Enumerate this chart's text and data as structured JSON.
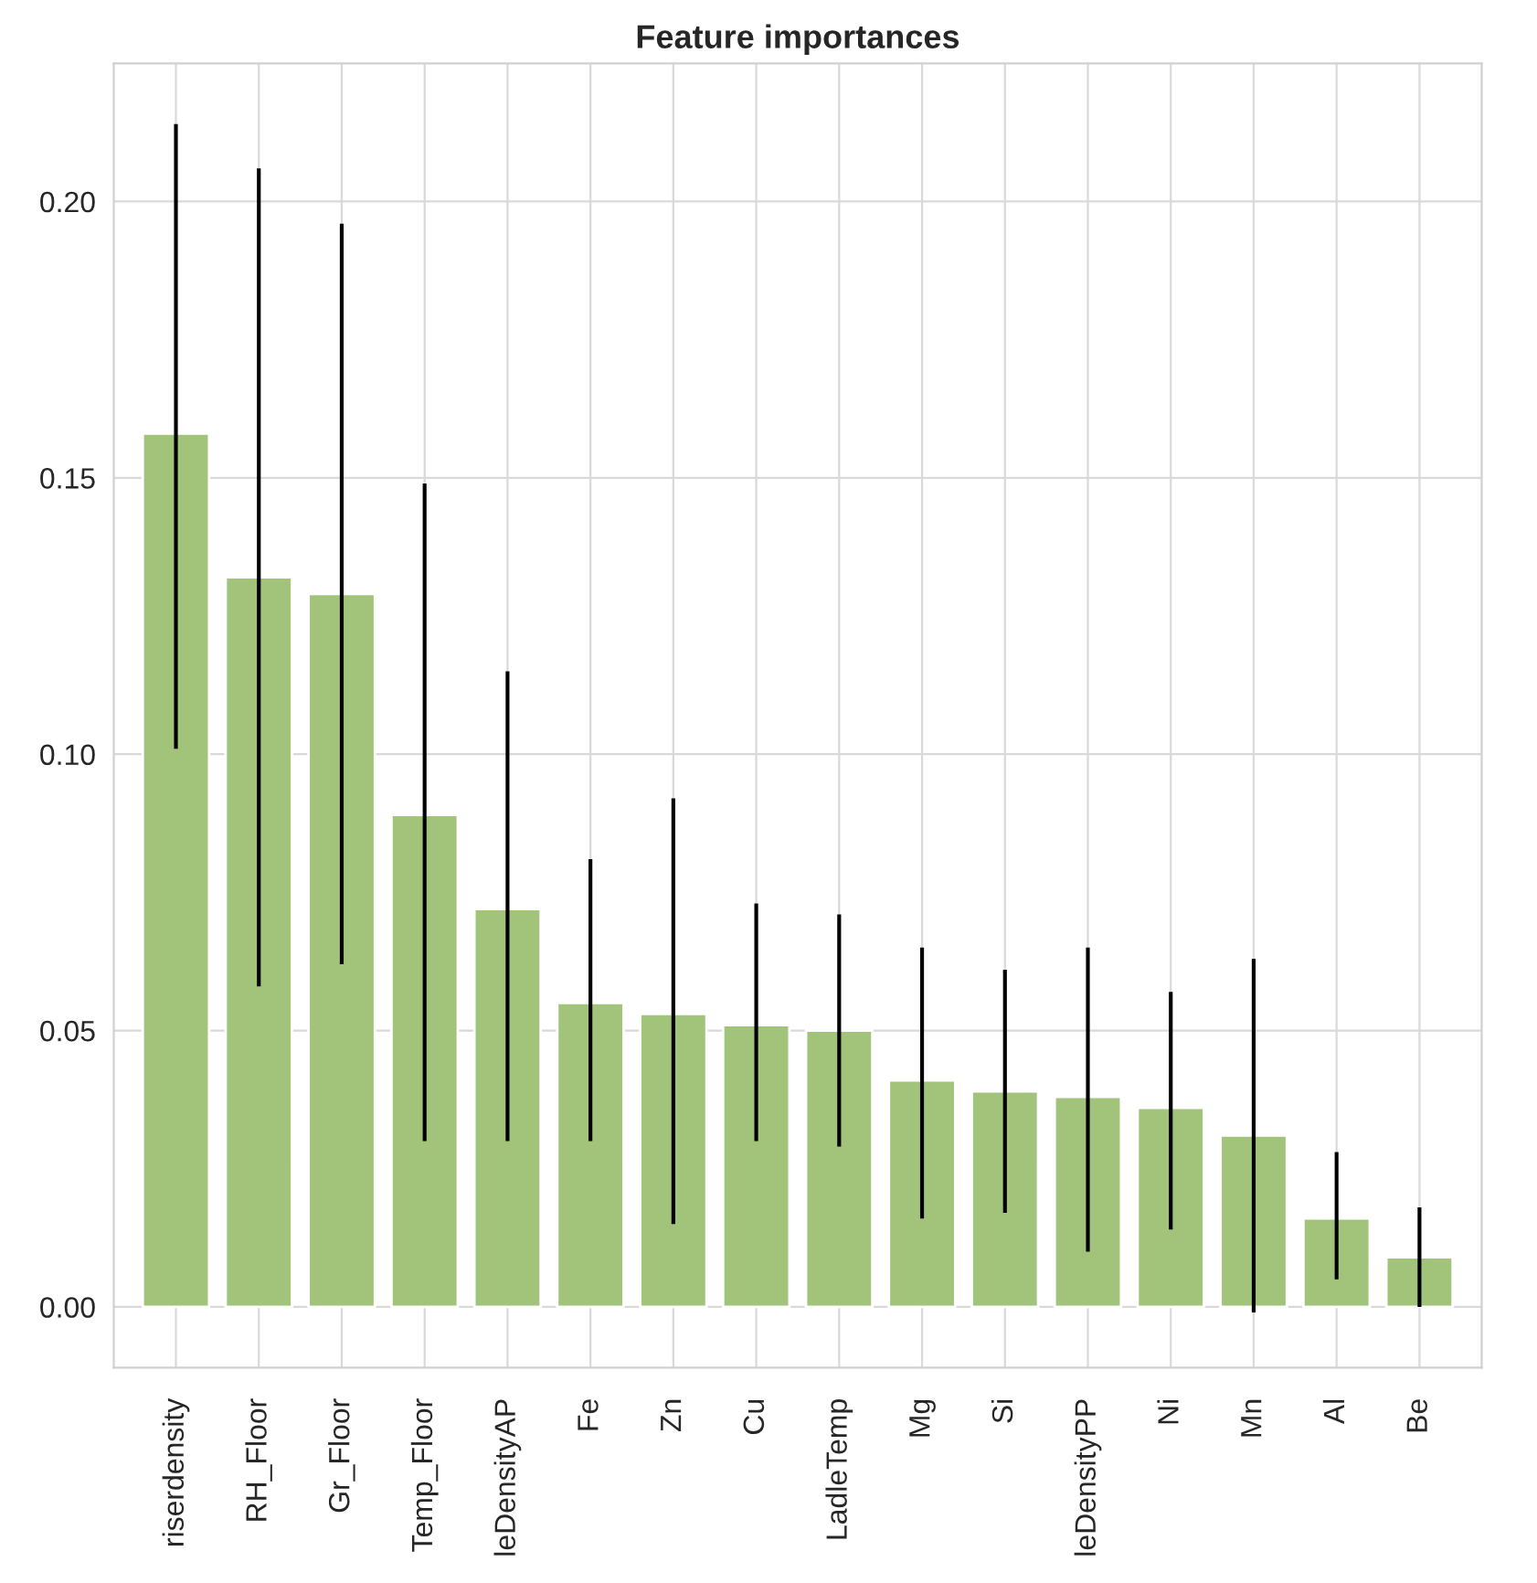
{
  "chart_data": {
    "type": "bar",
    "title": "Feature importances",
    "categories": [
      "riserdensity",
      "RH_Floor",
      "Gr_Floor",
      "Temp_Floor",
      "leDensityAP",
      "Fe",
      "Zn",
      "Cu",
      "LadleTemp",
      "Mg",
      "Si",
      "leDensityPP",
      "Ni",
      "Mn",
      "Al",
      "Be"
    ],
    "values": [
      0.158,
      0.132,
      0.129,
      0.089,
      0.072,
      0.055,
      0.053,
      0.051,
      0.05,
      0.041,
      0.039,
      0.038,
      0.036,
      0.031,
      0.016,
      0.009
    ],
    "errors": [
      [
        0.101,
        0.214
      ],
      [
        0.058,
        0.206
      ],
      [
        0.062,
        0.196
      ],
      [
        0.03,
        0.149
      ],
      [
        0.03,
        0.115
      ],
      [
        0.03,
        0.081
      ],
      [
        0.015,
        0.092
      ],
      [
        0.03,
        0.073
      ],
      [
        0.029,
        0.071
      ],
      [
        0.016,
        0.065
      ],
      [
        0.017,
        0.061
      ],
      [
        0.01,
        0.065
      ],
      [
        0.014,
        0.057
      ],
      [
        -0.001,
        0.063
      ],
      [
        0.005,
        0.028
      ],
      [
        0.0,
        0.018
      ]
    ],
    "color": "#a1c47a",
    "ylim": [
      -0.011,
      0.225
    ],
    "yticks": [
      {
        "value": 0,
        "label": "0.00"
      },
      {
        "value": 0.05,
        "label": "0.05"
      },
      {
        "value": 0.1,
        "label": "0.10"
      },
      {
        "value": 0.15,
        "label": "0.15"
      },
      {
        "value": 0.2,
        "label": "0.20"
      }
    ],
    "grid": true,
    "legend": false
  }
}
